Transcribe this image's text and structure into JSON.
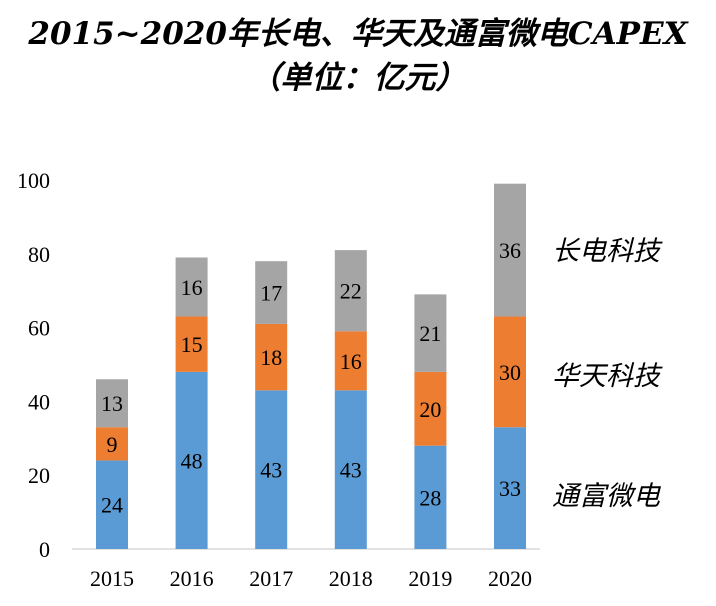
{
  "chart_data": {
    "type": "bar",
    "stacked": true,
    "title": "2015~2020年长电、华天及通富微电CAPEX",
    "subtitle": "（单位：亿元）",
    "categories": [
      "2015",
      "2016",
      "2017",
      "2018",
      "2019",
      "2020"
    ],
    "series": [
      {
        "name": "通富微电",
        "color": "#5b9bd5",
        "values": [
          24,
          48,
          43,
          43,
          28,
          33
        ]
      },
      {
        "name": "华天科技",
        "color": "#ed7d31",
        "values": [
          9,
          15,
          18,
          16,
          20,
          30
        ]
      },
      {
        "name": "长电科技",
        "color": "#a5a5a5",
        "values": [
          13,
          16,
          17,
          22,
          21,
          36
        ]
      }
    ],
    "ylim": [
      0,
      100
    ],
    "yticks": [
      "0",
      "20",
      "40",
      "60",
      "80",
      "100"
    ],
    "grid": false,
    "legend_position": "right"
  }
}
